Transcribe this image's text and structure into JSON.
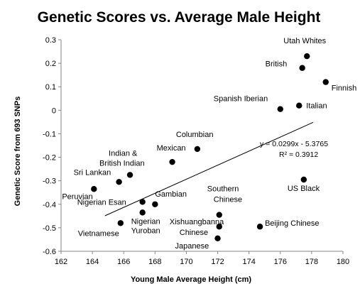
{
  "chart_data": {
    "type": "scatter",
    "title": "Genetic Scores vs. Average Male Height",
    "xlabel": "Young Male Average Height (cm)",
    "ylabel": "Genetic Score from 693 SNPs",
    "xlim": [
      162,
      180
    ],
    "ylim": [
      -0.6,
      0.3
    ],
    "xticks": [
      "162",
      "164",
      "166",
      "168",
      "170",
      "172",
      "174",
      "176",
      "178",
      "180"
    ],
    "yticks": [
      "0.3",
      "0.2",
      "0.1",
      "0",
      "-0.1",
      "-0.2",
      "-0.3",
      "-0.4",
      "-0.5",
      "-0.6"
    ],
    "grid": false,
    "points": [
      {
        "x": 177.7,
        "y": 0.23,
        "label": "Utah Whites"
      },
      {
        "x": 177.4,
        "y": 0.18,
        "label": "British"
      },
      {
        "x": 178.9,
        "y": 0.12,
        "label": "Finnish"
      },
      {
        "x": 176.0,
        "y": 0.005,
        "label": "Spanish Iberian"
      },
      {
        "x": 177.2,
        "y": 0.02,
        "label": "Italian"
      },
      {
        "x": 170.7,
        "y": -0.165,
        "label": "Columbian"
      },
      {
        "x": 169.1,
        "y": -0.22,
        "label": "Mexican"
      },
      {
        "x": 166.4,
        "y": -0.275,
        "label": "Indian & British Indian"
      },
      {
        "x": 165.7,
        "y": -0.305,
        "label": "Sri Lankan"
      },
      {
        "x": 164.1,
        "y": -0.335,
        "label": "Peruvian"
      },
      {
        "x": 177.5,
        "y": -0.295,
        "label": "US Black"
      },
      {
        "x": 167.2,
        "y": -0.39,
        "label": "Nigerian Esan"
      },
      {
        "x": 168.0,
        "y": -0.4,
        "label": "Gambian"
      },
      {
        "x": 167.2,
        "y": -0.435,
        "label": "Nigerian Yuroban"
      },
      {
        "x": 165.8,
        "y": -0.48,
        "label": "Vietnamese"
      },
      {
        "x": 172.1,
        "y": -0.445,
        "label": "Southern Chinese"
      },
      {
        "x": 172.1,
        "y": -0.495,
        "label": "Xishuangbanna Chinese"
      },
      {
        "x": 174.7,
        "y": -0.495,
        "label": "Beijing Chinese"
      },
      {
        "x": 172.0,
        "y": -0.545,
        "label": "Japanese"
      }
    ],
    "trendline": {
      "slope": 0.0299,
      "intercept": -5.3765,
      "x_range": [
        164.8,
        178.1
      ]
    },
    "annotations": [
      "y = 0.0299x - 5.3765",
      "R² = 0.3912"
    ]
  }
}
